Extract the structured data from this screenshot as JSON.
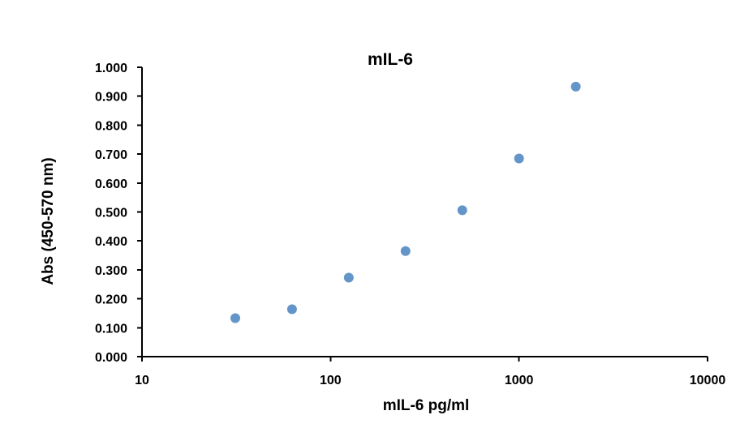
{
  "chart_data": {
    "type": "scatter",
    "title": "mIL-6",
    "xlabel": "mIL-6 pg/ml",
    "ylabel": "Abs (450-570 nm)",
    "xscale": "log",
    "xlim": [
      10,
      10000
    ],
    "ylim": [
      0,
      1
    ],
    "grid": false,
    "legend": "none",
    "x_ticks": [
      "10",
      "100",
      "1000",
      "10000"
    ],
    "y_ticks": [
      "0.000",
      "0.100",
      "0.200",
      "0.300",
      "0.400",
      "0.500",
      "0.600",
      "0.700",
      "0.800",
      "0.900",
      "1.000"
    ],
    "marker_color": "#6495C8",
    "series": [
      {
        "x": [
          31.25,
          62.5,
          125,
          250,
          500,
          1000,
          2000
        ],
        "y": [
          0.133,
          0.164,
          0.273,
          0.365,
          0.506,
          0.685,
          0.933
        ]
      }
    ]
  }
}
